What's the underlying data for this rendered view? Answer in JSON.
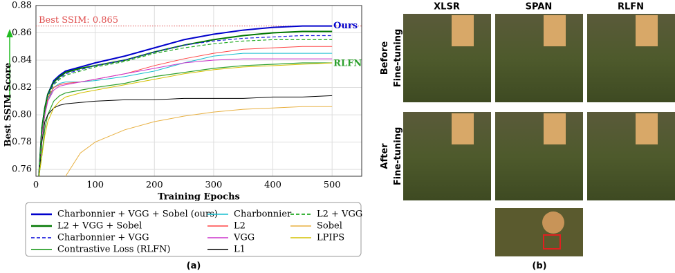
{
  "chart_data": {
    "type": "line",
    "xlabel": "Training Epochs",
    "ylabel": "Best SSIM Score",
    "xlim": [
      0,
      550
    ],
    "xticks": [
      0,
      100,
      200,
      300,
      400,
      500
    ],
    "ylim": [
      0.755,
      0.88
    ],
    "yticks": [
      {
        "value": 0.76,
        "label": "0.76"
      },
      {
        "value": 0.78,
        "label": "0.78"
      },
      {
        "value": 0.8,
        "label": "0.80"
      },
      {
        "value": 0.82,
        "label": "0.82"
      },
      {
        "value": 0.84,
        "label": "0.84"
      },
      {
        "value": 0.86,
        "label": "0.86"
      },
      {
        "value": 0.88,
        "label": "0.88"
      }
    ],
    "grid": true,
    "reference_line": {
      "value": 0.865,
      "label": "Best SSIM: 0.865",
      "color": "#e05050"
    },
    "caption": "(a)",
    "x": [
      5,
      10,
      15,
      20,
      30,
      40,
      50,
      75,
      100,
      150,
      200,
      250,
      300,
      350,
      400,
      450,
      500
    ],
    "series": [
      {
        "name": "Charbonnier + VGG + Sobel (ours)",
        "color": "#0000cc",
        "width": 2,
        "dashed": false,
        "end_label": "Ours",
        "values": [
          0.755,
          0.79,
          0.805,
          0.815,
          0.825,
          0.829,
          0.832,
          0.835,
          0.838,
          0.843,
          0.849,
          0.855,
          0.859,
          0.862,
          0.864,
          0.865,
          0.865
        ]
      },
      {
        "name": "L2 + VGG + Sobel",
        "color": "#007700",
        "width": 2,
        "dashed": false,
        "values": [
          0.755,
          0.79,
          0.805,
          0.815,
          0.824,
          0.828,
          0.831,
          0.834,
          0.836,
          0.84,
          0.846,
          0.851,
          0.855,
          0.858,
          0.86,
          0.861,
          0.861
        ]
      },
      {
        "name": "Charbonnier + VGG",
        "color": "#2222dd",
        "width": 1.2,
        "dashed": true,
        "values": [
          0.755,
          0.788,
          0.803,
          0.814,
          0.823,
          0.827,
          0.83,
          0.833,
          0.836,
          0.84,
          0.846,
          0.851,
          0.854,
          0.856,
          0.857,
          0.858,
          0.858
        ]
      },
      {
        "name": "Contrastive Loss (RLFN)",
        "color": "#2ca02c",
        "width": 1.2,
        "dashed": false,
        "end_label": "RLFN",
        "values": [
          0.755,
          0.77,
          0.79,
          0.8,
          0.81,
          0.814,
          0.816,
          0.818,
          0.82,
          0.823,
          0.828,
          0.831,
          0.834,
          0.836,
          0.837,
          0.838,
          0.838
        ]
      },
      {
        "name": "Charbonnier",
        "color": "#17becf",
        "width": 1,
        "dashed": false,
        "values": [
          0.755,
          0.785,
          0.8,
          0.81,
          0.82,
          0.823,
          0.824,
          0.824,
          0.825,
          0.828,
          0.832,
          0.838,
          0.843,
          0.845,
          0.845,
          0.845,
          0.845
        ]
      },
      {
        "name": "L2",
        "color": "#ff4444",
        "width": 1,
        "dashed": false,
        "values": [
          0.755,
          0.785,
          0.8,
          0.812,
          0.82,
          0.822,
          0.823,
          0.824,
          0.826,
          0.83,
          0.836,
          0.841,
          0.845,
          0.848,
          0.849,
          0.85,
          0.85
        ]
      },
      {
        "name": "VGG",
        "color": "#cc33cc",
        "width": 1,
        "dashed": false,
        "values": [
          0.755,
          0.785,
          0.8,
          0.81,
          0.818,
          0.821,
          0.822,
          0.824,
          0.826,
          0.83,
          0.834,
          0.838,
          0.84,
          0.841,
          0.841,
          0.841,
          0.841
        ]
      },
      {
        "name": "L1",
        "color": "#000000",
        "width": 1,
        "dashed": false,
        "values": [
          0.755,
          0.78,
          0.795,
          0.8,
          0.805,
          0.807,
          0.808,
          0.809,
          0.81,
          0.811,
          0.811,
          0.812,
          0.812,
          0.812,
          0.813,
          0.813,
          0.814
        ]
      },
      {
        "name": "L2 + VGG",
        "color": "#22aa22",
        "width": 1.2,
        "dashed": true,
        "values": [
          0.755,
          0.788,
          0.803,
          0.813,
          0.822,
          0.826,
          0.829,
          0.832,
          0.835,
          0.839,
          0.845,
          0.849,
          0.852,
          0.854,
          0.855,
          0.855,
          0.855
        ]
      },
      {
        "name": "Sobel",
        "color": "#e8b040",
        "width": 1,
        "dashed": false,
        "values": [
          null,
          null,
          null,
          null,
          null,
          null,
          0.755,
          0.772,
          0.78,
          0.789,
          0.795,
          0.799,
          0.802,
          0.804,
          0.805,
          0.806,
          0.806
        ]
      },
      {
        "name": "LPIPS",
        "color": "#d4c000",
        "width": 1,
        "dashed": false,
        "values": [
          0.755,
          0.77,
          0.785,
          0.795,
          0.805,
          0.81,
          0.813,
          0.816,
          0.818,
          0.822,
          0.826,
          0.83,
          0.833,
          0.835,
          0.836,
          0.837,
          0.838
        ]
      }
    ]
  },
  "image_grid": {
    "columns": [
      "XLSR",
      "SPAN",
      "RLFN"
    ],
    "rows": [
      "Before\nFine-tuning",
      "After\nFine-tuning"
    ],
    "caption": "(b)"
  }
}
